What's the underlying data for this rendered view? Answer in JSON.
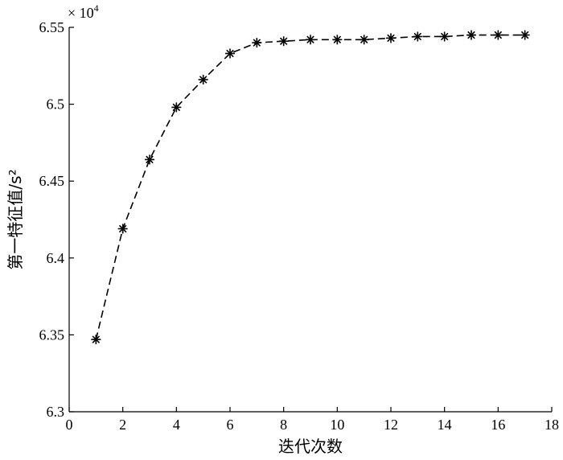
{
  "chart_data": {
    "type": "line",
    "xlabel": "迭代次数",
    "ylabel": "第一特征值/s²",
    "exponent_label": "× 10",
    "exponent_power": "4",
    "xlim": [
      0,
      18
    ],
    "ylim": [
      6.3,
      6.55
    ],
    "x_ticks": [
      0,
      2,
      4,
      6,
      8,
      10,
      12,
      14,
      16,
      18
    ],
    "y_ticks": [
      6.3,
      6.35,
      6.4,
      6.45,
      6.5,
      6.55
    ],
    "x_tick_labels": [
      "0",
      "2",
      "4",
      "6",
      "8",
      "10",
      "12",
      "14",
      "16",
      "18"
    ],
    "y_tick_labels": [
      "6.3",
      "6.35",
      "6.4",
      "6.45",
      "6.5",
      "6.55"
    ],
    "grid": false,
    "marker": "asterisk",
    "line_style": "dashed",
    "color": "#000000",
    "series": [
      {
        "x": [
          1,
          2,
          3,
          4,
          5,
          6,
          7,
          8,
          9,
          10,
          11,
          12,
          13,
          14,
          15,
          16,
          17
        ],
        "values": [
          6.347,
          6.419,
          6.464,
          6.498,
          6.516,
          6.533,
          6.54,
          6.541,
          6.542,
          6.542,
          6.542,
          6.543,
          6.544,
          6.544,
          6.545,
          6.545,
          6.545
        ]
      }
    ]
  }
}
